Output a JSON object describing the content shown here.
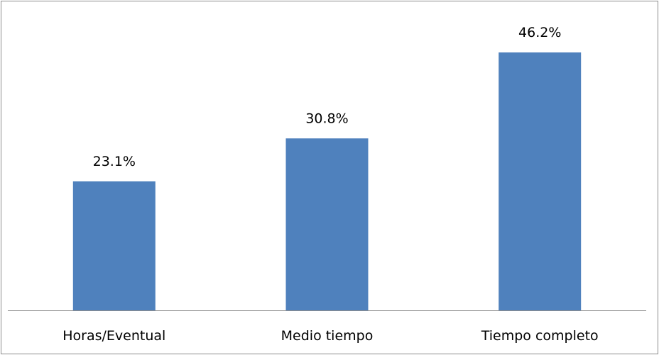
{
  "chart_data": {
    "type": "bar",
    "categories": [
      "Horas/Eventual",
      "Medio tiempo",
      "Tiempo completo"
    ],
    "values": [
      23.1,
      30.8,
      46.2
    ],
    "data_labels": [
      "23.1%",
      "30.8%",
      "46.2%"
    ],
    "ylim": [
      0,
      50
    ],
    "grid": false,
    "legend": "none",
    "colors": {
      "bar": "#4f81bd",
      "axis": "#8c8c8c",
      "border": "#8c8c8c"
    }
  }
}
